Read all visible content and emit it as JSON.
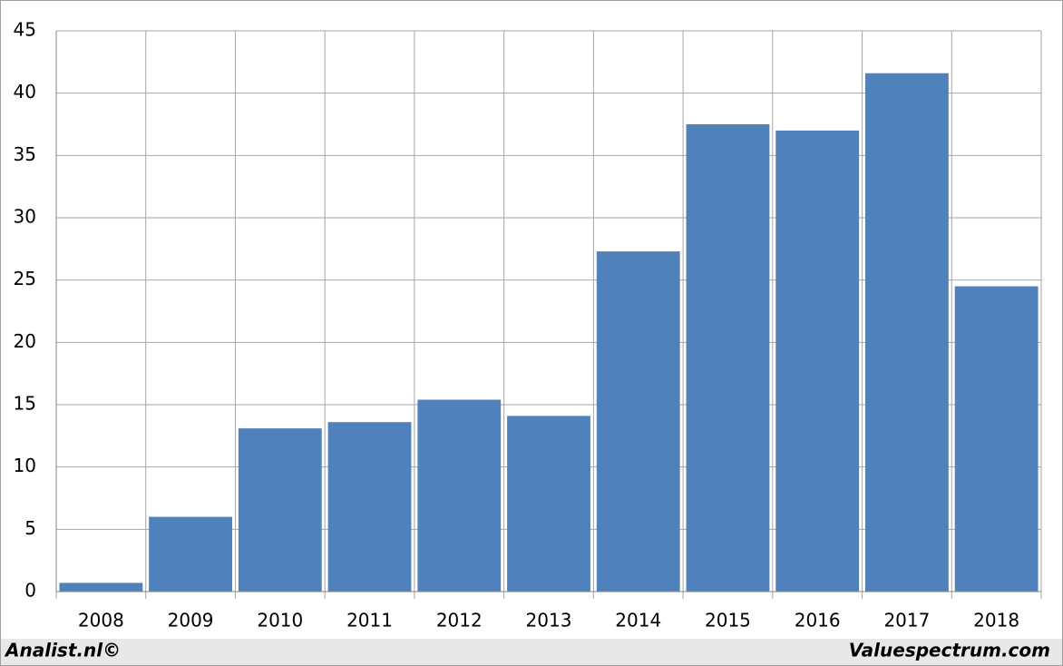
{
  "chart_data": {
    "type": "bar",
    "categories": [
      "2008",
      "2009",
      "2010",
      "2011",
      "2012",
      "2013",
      "2014",
      "2015",
      "2016",
      "2017",
      "2018"
    ],
    "values": [
      0.7,
      6.0,
      13.1,
      13.6,
      15.4,
      14.1,
      27.3,
      37.5,
      37.0,
      41.6,
      24.5
    ],
    "color": "#4f81bd",
    "ylim": [
      0,
      45
    ],
    "yticks": [
      0,
      5,
      10,
      15,
      20,
      25,
      30,
      35,
      40,
      45
    ],
    "grid": true
  },
  "footer": {
    "left": "Analist.nl©",
    "right": "Valuespectrum.com"
  }
}
